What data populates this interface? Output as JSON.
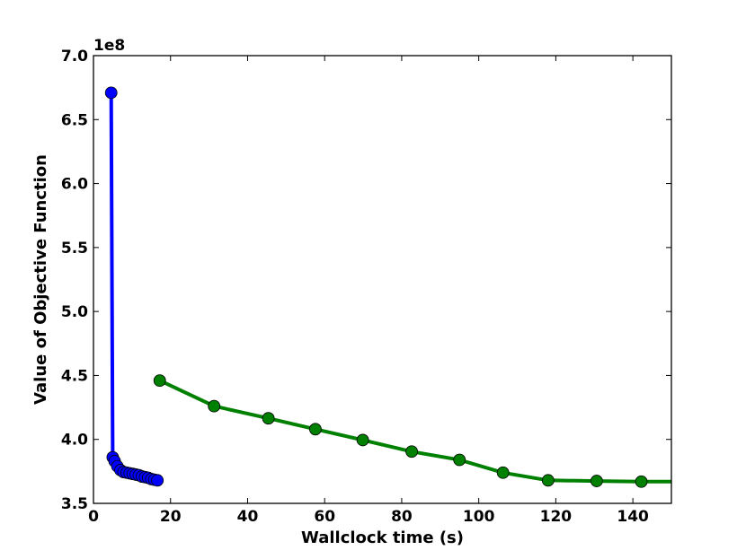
{
  "chart_data": {
    "type": "line",
    "title": "",
    "xlabel": "Wallclock time (s)",
    "ylabel": "Value of Objective Function",
    "y_offset_label": "1e8",
    "xlim": [
      0,
      150
    ],
    "ylim": [
      3.5,
      7.0
    ],
    "grid": false,
    "legend": false,
    "x_ticks": [
      0,
      20,
      40,
      60,
      80,
      100,
      120,
      140
    ],
    "x_tick_labels": [
      "0",
      "20",
      "40",
      "60",
      "80",
      "100",
      "120",
      "140"
    ],
    "y_ticks": [
      3.5,
      4.0,
      4.5,
      5.0,
      5.5,
      6.0,
      6.5,
      7.0
    ],
    "y_tick_labels": [
      "3.5",
      "4.0",
      "4.5",
      "5.0",
      "5.5",
      "6.0",
      "6.5",
      "7.0"
    ],
    "series": [
      {
        "color": "#0000ff",
        "x": [
          4.6,
          5.0,
          5.5,
          6.2,
          7.0,
          7.8,
          8.6,
          9.4,
          10.2,
          11.0,
          11.8,
          12.6,
          13.4,
          14.2,
          15.0,
          15.8,
          16.6
        ],
        "y": [
          6.71,
          3.86,
          3.83,
          3.79,
          3.76,
          3.745,
          3.74,
          3.735,
          3.73,
          3.725,
          3.72,
          3.71,
          3.705,
          3.7,
          3.69,
          3.685,
          3.68
        ]
      },
      {
        "color": "#008000",
        "x": [
          17.2,
          31.3,
          45.4,
          57.6,
          69.9,
          82.6,
          95.0,
          106.3,
          118.0,
          130.6,
          142.2,
          155
        ],
        "y": [
          4.46,
          4.26,
          4.165,
          4.08,
          3.995,
          3.905,
          3.84,
          3.74,
          3.68,
          3.675,
          3.67,
          3.67
        ],
        "marker_count": 11
      }
    ]
  }
}
